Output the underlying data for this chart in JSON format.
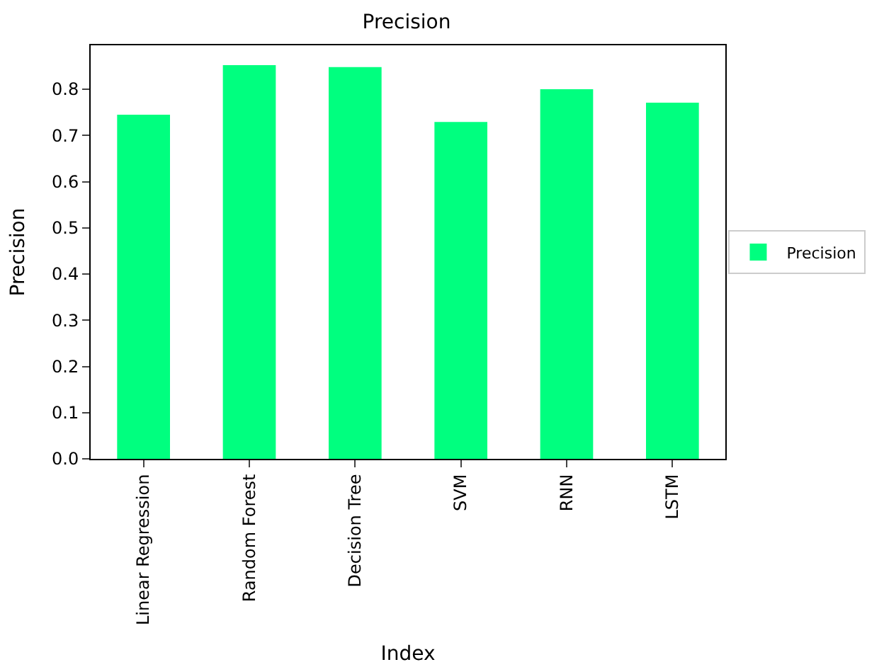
{
  "chart_data": {
    "type": "bar",
    "title": "Precision",
    "xlabel": "Index",
    "ylabel": "Precision",
    "categories": [
      "Linear Regression",
      "Random Forest",
      "Decision Tree",
      "SVM",
      "RNN",
      "LSTM"
    ],
    "series": [
      {
        "name": "Precision",
        "color": "#00ff7f",
        "values": [
          0.745,
          0.852,
          0.848,
          0.729,
          0.8,
          0.771
        ]
      }
    ],
    "ylim": [
      0,
      0.895
    ],
    "yticks": [
      {
        "value": 0,
        "label": "0.0"
      },
      0.1,
      0.2,
      0.3,
      0.4,
      0.5,
      0.6,
      0.7,
      0.8
    ],
    "legend": "right"
  }
}
